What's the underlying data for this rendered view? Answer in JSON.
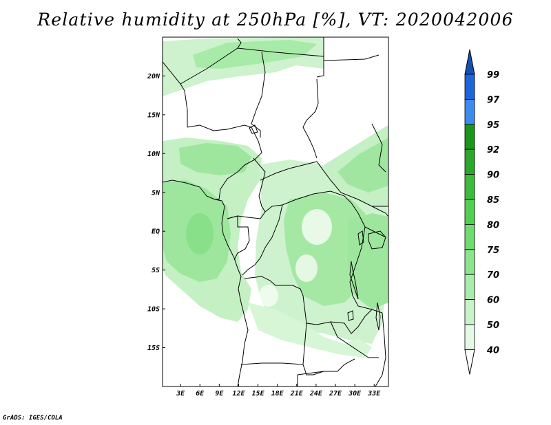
{
  "title": "Relative humidity at 250hPa [%], VT: 2020042006",
  "credit": "GrADS: IGES/COLA",
  "map": {
    "lat_range": [
      -20,
      25
    ],
    "lon_range": [
      0,
      35
    ],
    "lat_ticks": [
      {
        "value": 20,
        "label": "20N"
      },
      {
        "value": 15,
        "label": "15N"
      },
      {
        "value": 10,
        "label": "10N"
      },
      {
        "value": 5,
        "label": "5N"
      },
      {
        "value": 0,
        "label": "EQ"
      },
      {
        "value": -5,
        "label": "5S"
      },
      {
        "value": -10,
        "label": "10S"
      },
      {
        "value": -15,
        "label": "15S"
      }
    ],
    "lon_ticks": [
      {
        "value": 3,
        "label": "3E"
      },
      {
        "value": 6,
        "label": "6E"
      },
      {
        "value": 9,
        "label": "9E"
      },
      {
        "value": 12,
        "label": "12E"
      },
      {
        "value": 15,
        "label": "15E"
      },
      {
        "value": 18,
        "label": "18E"
      },
      {
        "value": 21,
        "label": "21E"
      },
      {
        "value": 24,
        "label": "24E"
      },
      {
        "value": 27,
        "label": "27E"
      },
      {
        "value": 30,
        "label": "30E"
      },
      {
        "value": 33,
        "label": "33E"
      }
    ]
  },
  "colorbar": {
    "levels": [
      {
        "label": "99",
        "color": "#1e64dc"
      },
      {
        "label": "97",
        "color": "#3c8cf0"
      },
      {
        "label": "95",
        "color": "#1a961a"
      },
      {
        "label": "92",
        "color": "#2aa82a"
      },
      {
        "label": "90",
        "color": "#3cbc3c"
      },
      {
        "label": "85",
        "color": "#50d050"
      },
      {
        "label": "80",
        "color": "#6edc6e"
      },
      {
        "label": "75",
        "color": "#8ce48c"
      },
      {
        "label": "70",
        "color": "#aaecaa"
      },
      {
        "label": "60",
        "color": "#c8f2c8"
      },
      {
        "label": "50",
        "color": "#e4fae4"
      },
      {
        "label": "40",
        "color": "#ffffff"
      }
    ],
    "top_arrow_color": "#1450b4",
    "bottom_arrow_color": "#ffffff"
  }
}
